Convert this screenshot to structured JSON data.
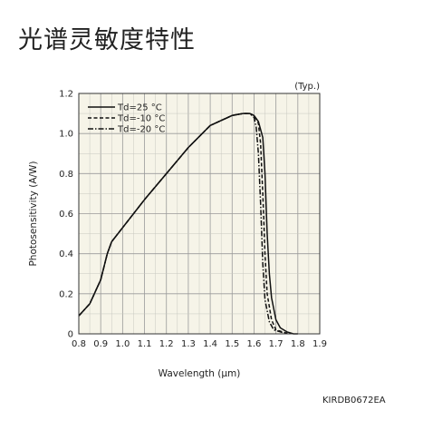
{
  "title": "光谱灵敏度特性",
  "doc_code": "KIRDB0672EA",
  "chart_data": {
    "type": "line",
    "annotation": "(Typ.)",
    "xlabel": "Wavelength (μm)",
    "ylabel": "Photosensitivity (A/W)",
    "xlim": [
      0.8,
      1.9
    ],
    "ylim": [
      0,
      1.2
    ],
    "x_ticks": [
      "0.8",
      "0.9",
      "1.0",
      "1.1",
      "1.2",
      "1.3",
      "1.4",
      "1.5",
      "1.6",
      "1.7",
      "1.8",
      "1.9"
    ],
    "y_ticks": [
      "0",
      "0.2",
      "0.4",
      "0.6",
      "0.8",
      "1.0",
      "1.2"
    ],
    "grid": true,
    "legend_position": "top-left",
    "series": [
      {
        "name": "Td=25 °C",
        "style": "solid",
        "x": [
          0.8,
          0.85,
          0.9,
          0.93,
          0.95,
          1.0,
          1.1,
          1.2,
          1.3,
          1.4,
          1.5,
          1.55,
          1.58,
          1.6,
          1.62,
          1.64,
          1.65,
          1.66,
          1.67,
          1.68,
          1.7,
          1.72,
          1.75,
          1.78,
          1.8
        ],
        "y": [
          0.09,
          0.15,
          0.27,
          0.4,
          0.46,
          0.53,
          0.67,
          0.8,
          0.93,
          1.04,
          1.09,
          1.1,
          1.1,
          1.09,
          1.06,
          0.98,
          0.8,
          0.5,
          0.3,
          0.18,
          0.07,
          0.03,
          0.01,
          0.0,
          0.0
        ]
      },
      {
        "name": "Td=-10 °C",
        "style": "dashed",
        "x": [
          0.8,
          0.85,
          0.9,
          0.93,
          0.95,
          1.0,
          1.1,
          1.2,
          1.3,
          1.4,
          1.5,
          1.55,
          1.58,
          1.6,
          1.62,
          1.63,
          1.64,
          1.65,
          1.66,
          1.68,
          1.7,
          1.73,
          1.76
        ],
        "y": [
          0.09,
          0.15,
          0.27,
          0.4,
          0.46,
          0.53,
          0.67,
          0.8,
          0.93,
          1.04,
          1.09,
          1.1,
          1.1,
          1.09,
          1.05,
          0.95,
          0.7,
          0.4,
          0.2,
          0.07,
          0.02,
          0.01,
          0.0
        ]
      },
      {
        "name": "Td=-20 °C",
        "style": "dashdot",
        "x": [
          0.8,
          0.85,
          0.9,
          0.93,
          0.95,
          1.0,
          1.1,
          1.2,
          1.3,
          1.4,
          1.5,
          1.55,
          1.58,
          1.6,
          1.61,
          1.62,
          1.63,
          1.64,
          1.65,
          1.67,
          1.69,
          1.72,
          1.75
        ],
        "y": [
          0.09,
          0.15,
          0.27,
          0.4,
          0.46,
          0.53,
          0.67,
          0.8,
          0.93,
          1.04,
          1.09,
          1.1,
          1.1,
          1.08,
          1.03,
          0.9,
          0.65,
          0.35,
          0.17,
          0.06,
          0.02,
          0.01,
          0.0
        ]
      }
    ]
  }
}
